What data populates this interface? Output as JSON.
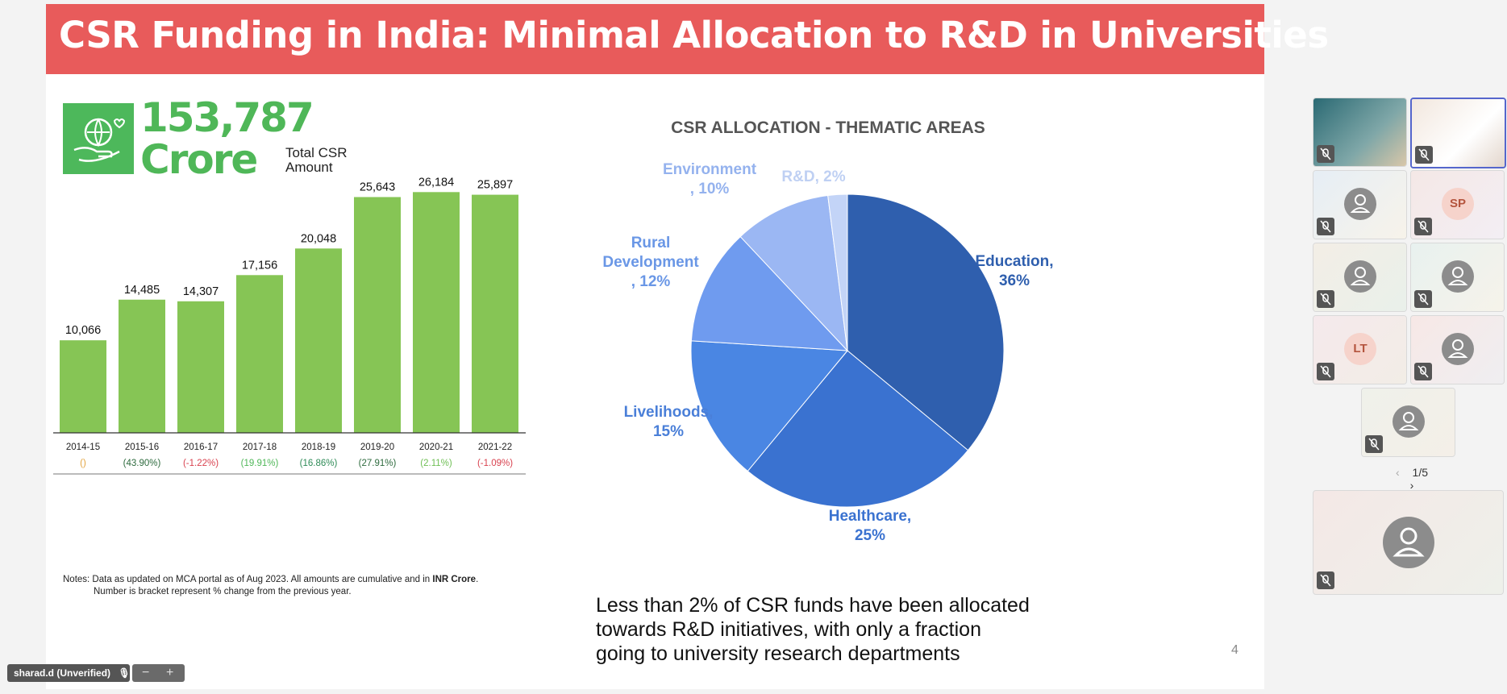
{
  "slide": {
    "title": "CSR Funding in India: Minimal Allocation to R&D in Universities",
    "total": {
      "number": "153,787",
      "unit": "Crore",
      "label": "Total CSR Amount"
    },
    "notes_line1_a": "Notes: Data as updated on MCA portal as of Aug 2023. All amounts are cumulative and in ",
    "notes_line1_b": "INR Crore",
    "notes_line1_c": ".",
    "notes_line2": "Number is bracket represent % change from the previous year.",
    "caption": "Less than 2% of CSR funds have been allocated towards R&D initiatives, with only a fraction going to university research departments",
    "page_number": "4"
  },
  "chart_data": [
    {
      "type": "bar",
      "title": "",
      "categories": [
        "2014-15",
        "2015-16",
        "2016-17",
        "2017-18",
        "2018-19",
        "2019-20",
        "2020-21",
        "2021-22"
      ],
      "values": [
        10066,
        14485,
        14307,
        17156,
        20048,
        25643,
        26184,
        25897
      ],
      "value_labels": [
        "10,066",
        "14,485",
        "14,307",
        "17,156",
        "20,048",
        "25,643",
        "26,184",
        "25,897"
      ],
      "changes": [
        "()",
        "(43.90%)",
        "(-1.22%)",
        "(19.91%)",
        "(16.86%)",
        "(27.91%)",
        "(2.11%)",
        "(-1.09%)"
      ],
      "change_colors": [
        "#e3a542",
        "#2e6b3e",
        "#d9424f",
        "#4fb758",
        "#2e8b57",
        "#2e6b3e",
        "#6fbf55",
        "#d9424f"
      ],
      "bar_color": "#86c555",
      "ylim": [
        0,
        27000
      ]
    },
    {
      "type": "pie",
      "title": "CSR ALLOCATION - THEMATIC AREAS",
      "slices": [
        {
          "label": "Education, 36%",
          "value": 36,
          "color": "#2f5fae"
        },
        {
          "label": "Healthcare, 25%",
          "value": 25,
          "color": "#3a72d0"
        },
        {
          "label": "Livelihoods, 15%",
          "value": 15,
          "color": "#4a86e3"
        },
        {
          "label": "Rural Development , 12%",
          "value": 12,
          "color": "#6f9bef"
        },
        {
          "label": "Environment , 10%",
          "value": 10,
          "color": "#9bb7f3"
        },
        {
          "label": "R&D, 2%",
          "value": 2,
          "color": "#c3d4f7"
        }
      ],
      "label_colors": [
        "#2f5fae",
        "#3a72d0",
        "#4a7fd8",
        "#6a97e6",
        "#94b2ee",
        "#bfd0f3"
      ]
    }
  ],
  "meeting": {
    "self_name": "sharad.d (Unverified)",
    "zoom_minus": "−",
    "zoom_plus": "+",
    "pager": "1/5",
    "prev": "‹",
    "next": "›",
    "participants": [
      {
        "type": "video"
      },
      {
        "type": "video"
      },
      {
        "type": "avatar"
      },
      {
        "type": "initials",
        "initials": "SP"
      },
      {
        "type": "avatar"
      },
      {
        "type": "avatar"
      },
      {
        "type": "initials",
        "initials": "LT"
      },
      {
        "type": "avatar"
      },
      {
        "type": "avatar"
      }
    ]
  }
}
